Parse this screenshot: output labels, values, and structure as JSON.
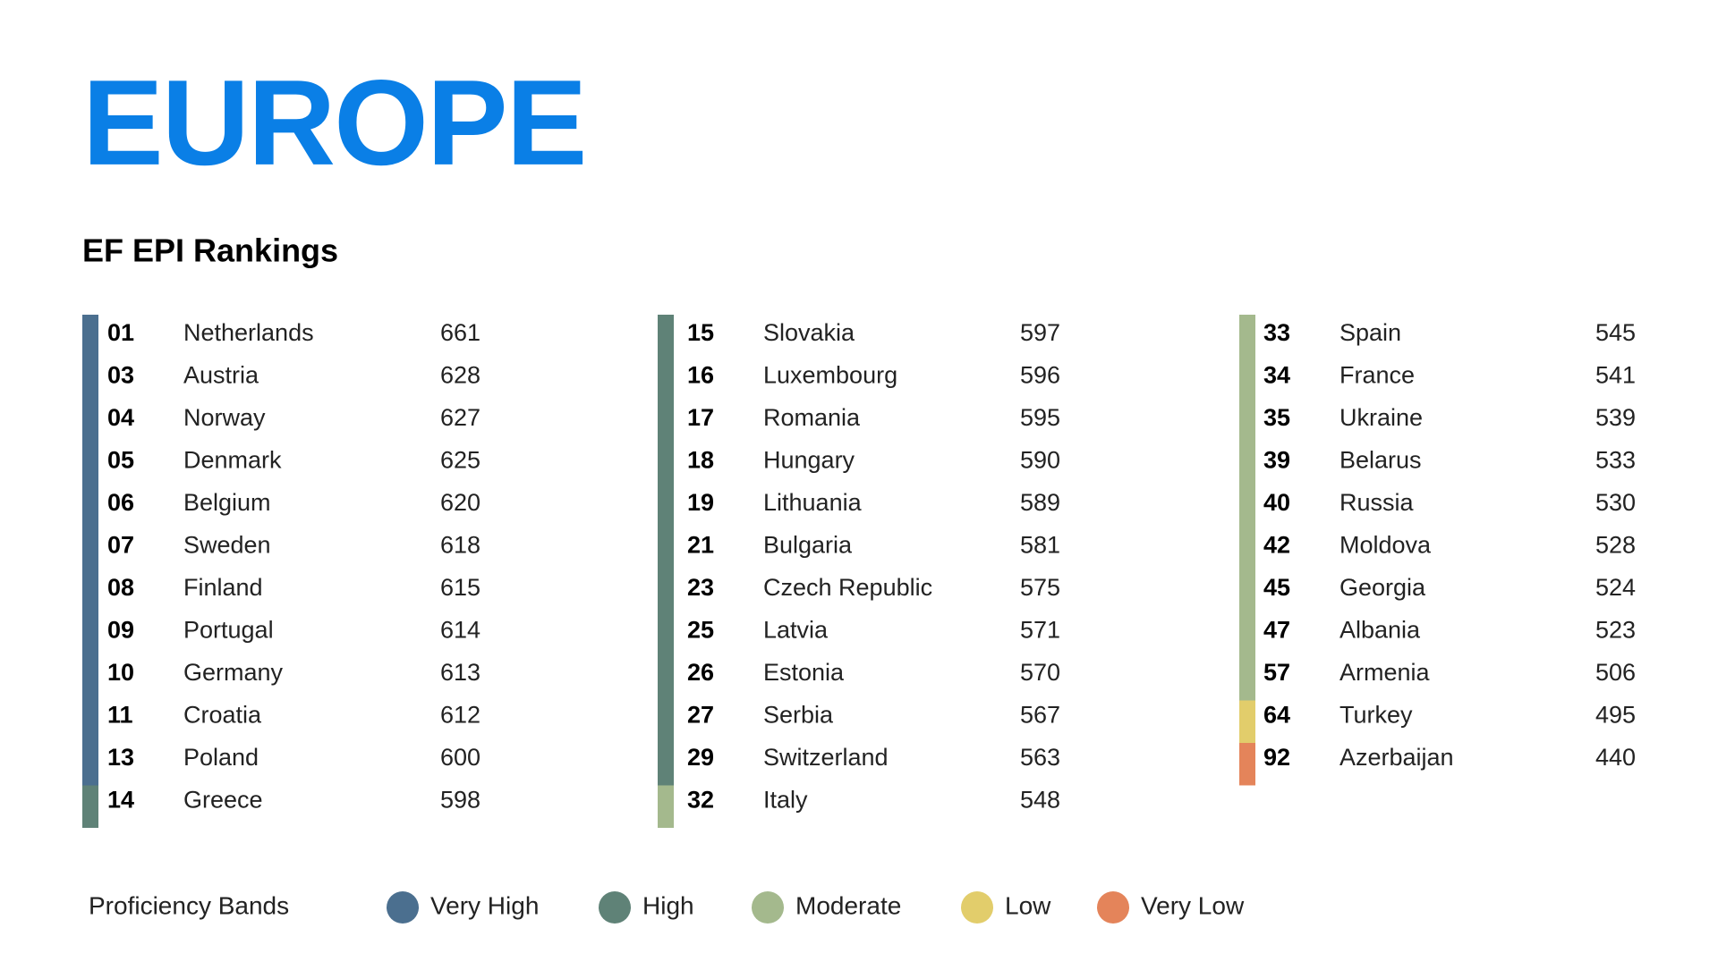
{
  "header": {
    "title": "EUROPE",
    "subtitle": "EF EPI Rankings"
  },
  "legend": {
    "label": "Proficiency Bands",
    "bands": [
      {
        "name": "Very High",
        "color": "#4b6f8f"
      },
      {
        "name": "High",
        "color": "#5f8277"
      },
      {
        "name": "Moderate",
        "color": "#a4b98d"
      },
      {
        "name": "Low",
        "color": "#e2cd6b"
      },
      {
        "name": "Very Low",
        "color": "#e4845a"
      }
    ]
  },
  "columns": [
    [
      {
        "rank": "01",
        "country": "Netherlands",
        "score": 661,
        "band": 0
      },
      {
        "rank": "03",
        "country": "Austria",
        "score": 628,
        "band": 0
      },
      {
        "rank": "04",
        "country": "Norway",
        "score": 627,
        "band": 0
      },
      {
        "rank": "05",
        "country": "Denmark",
        "score": 625,
        "band": 0
      },
      {
        "rank": "06",
        "country": "Belgium",
        "score": 620,
        "band": 0
      },
      {
        "rank": "07",
        "country": "Sweden",
        "score": 618,
        "band": 0
      },
      {
        "rank": "08",
        "country": "Finland",
        "score": 615,
        "band": 0
      },
      {
        "rank": "09",
        "country": "Portugal",
        "score": 614,
        "band": 0
      },
      {
        "rank": "10",
        "country": "Germany",
        "score": 613,
        "band": 0
      },
      {
        "rank": "11",
        "country": "Croatia",
        "score": 612,
        "band": 0
      },
      {
        "rank": "13",
        "country": "Poland",
        "score": 600,
        "band": 0
      },
      {
        "rank": "14",
        "country": "Greece",
        "score": 598,
        "band": 1
      }
    ],
    [
      {
        "rank": "15",
        "country": "Slovakia",
        "score": 597,
        "band": 1
      },
      {
        "rank": "16",
        "country": "Luxembourg",
        "score": 596,
        "band": 1
      },
      {
        "rank": "17",
        "country": "Romania",
        "score": 595,
        "band": 1
      },
      {
        "rank": "18",
        "country": "Hungary",
        "score": 590,
        "band": 1
      },
      {
        "rank": "19",
        "country": "Lithuania",
        "score": 589,
        "band": 1
      },
      {
        "rank": "21",
        "country": "Bulgaria",
        "score": 581,
        "band": 1
      },
      {
        "rank": "23",
        "country": "Czech Republic",
        "score": 575,
        "band": 1
      },
      {
        "rank": "25",
        "country": "Latvia",
        "score": 571,
        "band": 1
      },
      {
        "rank": "26",
        "country": "Estonia",
        "score": 570,
        "band": 1
      },
      {
        "rank": "27",
        "country": "Serbia",
        "score": 567,
        "band": 1
      },
      {
        "rank": "29",
        "country": "Switzerland",
        "score": 563,
        "band": 1
      },
      {
        "rank": "32",
        "country": "Italy",
        "score": 548,
        "band": 2
      }
    ],
    [
      {
        "rank": "33",
        "country": "Spain",
        "score": 545,
        "band": 2
      },
      {
        "rank": "34",
        "country": "France",
        "score": 541,
        "band": 2
      },
      {
        "rank": "35",
        "country": "Ukraine",
        "score": 539,
        "band": 2
      },
      {
        "rank": "39",
        "country": "Belarus",
        "score": 533,
        "band": 2
      },
      {
        "rank": "40",
        "country": "Russia",
        "score": 530,
        "band": 2
      },
      {
        "rank": "42",
        "country": "Moldova",
        "score": 528,
        "band": 2
      },
      {
        "rank": "45",
        "country": "Georgia",
        "score": 524,
        "band": 2
      },
      {
        "rank": "47",
        "country": "Albania",
        "score": 523,
        "band": 2
      },
      {
        "rank": "57",
        "country": "Armenia",
        "score": 506,
        "band": 2
      },
      {
        "rank": "64",
        "country": "Turkey",
        "score": 495,
        "band": 3
      },
      {
        "rank": "92",
        "country": "Azerbaijan",
        "score": 440,
        "band": 4
      }
    ]
  ]
}
